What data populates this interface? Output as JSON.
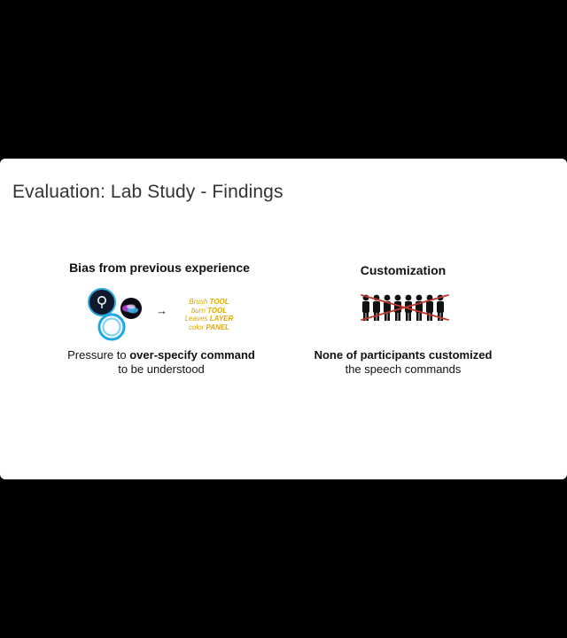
{
  "slide": {
    "title": "Evaluation: Lab Study - Findings",
    "left_panel": {
      "heading": "Bias from previous experience",
      "body_prefix": "Pressure to ",
      "body_emphasis": "over-specify command",
      "body_suffix": "to be understood",
      "arrow": "→",
      "commands": [
        {
          "word": "Brush",
          "keyword": "TOOL"
        },
        {
          "word": "burn",
          "keyword": "TOOL"
        },
        {
          "word": "Leaves",
          "keyword": "LAYER"
        },
        {
          "word": "color",
          "keyword": "PANEL"
        }
      ],
      "icons": [
        "cortana-icon",
        "siri-icon",
        "alexa-icon"
      ]
    },
    "right_panel": {
      "heading": "Customization",
      "body_emphasis": "None of participants customized",
      "body_suffix": "the speech commands",
      "icons": [
        "crossed-out-people-icon"
      ]
    },
    "colors": {
      "background": "#000000",
      "slide": "#ffffff",
      "accent_yellow": "#e0a800",
      "cross_red": "#c0392b"
    }
  }
}
